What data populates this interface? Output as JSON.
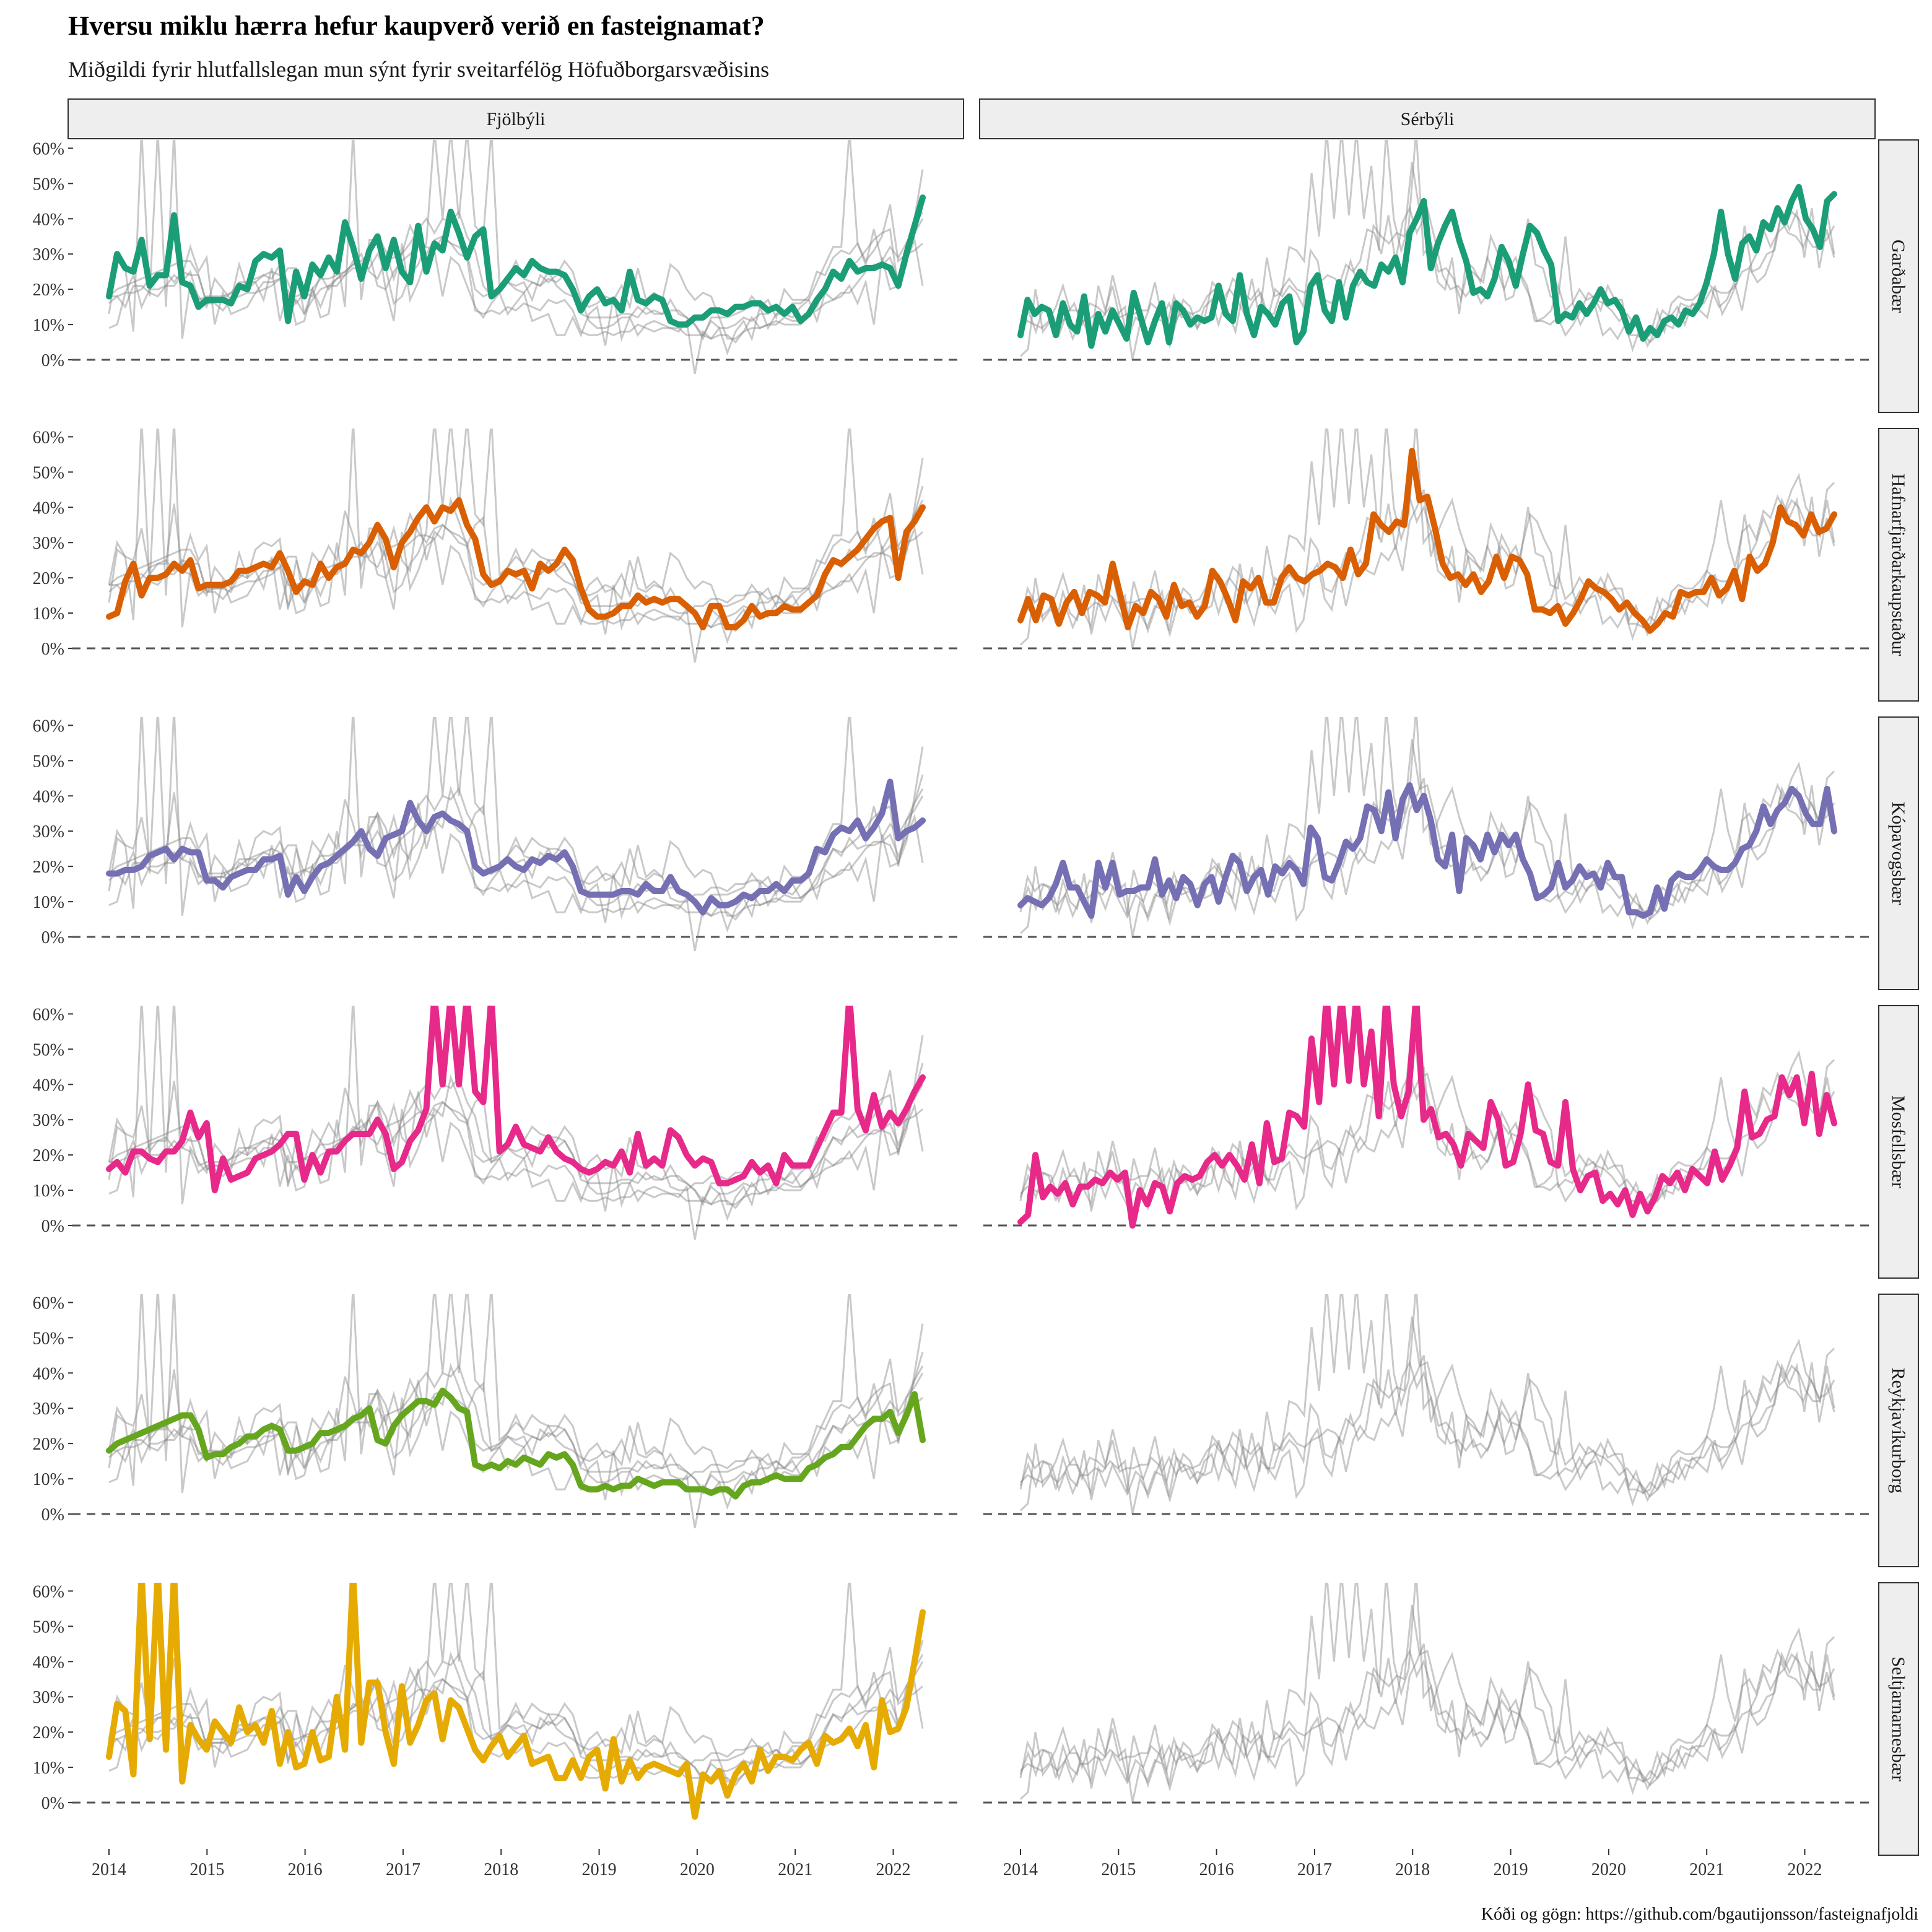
{
  "chart_data": {
    "type": "line",
    "title": "Hversu miklu hærra hefur kaupverð verið en fasteignamat?",
    "subtitle": "Miðgildi fyrir hlutfallslegan mun sýnt fyrir sveitarfélög Höfuðborgarsvæðisins",
    "caption": "Kóði og gögn: https://github.com/bgautijonsson/fasteignafjoldi",
    "xlabel": "",
    "ylabel": "",
    "x_ticks": [
      "2014",
      "2015",
      "2016",
      "2017",
      "2018",
      "2019",
      "2020",
      "2021",
      "2022"
    ],
    "xlim": [
      2014,
      2022.3
    ],
    "y_ticks": [
      "0%",
      "10%",
      "20%",
      "30%",
      "40%",
      "50%",
      "60%"
    ],
    "ylim": [
      -0.1,
      0.62
    ],
    "reference_line": 0,
    "columns": [
      "Fjölbýli",
      "Sérbýli"
    ],
    "rows": [
      "Garðabær",
      "Hafnarfjarðarkaupstaður",
      "Kópavogsbær",
      "Mosfellsbær",
      "Reykjavíkurborg",
      "Seltjarnarnesbær"
    ],
    "colors": {
      "Garðabær": "#1b9e77",
      "Hafnarfjarðarkaupstaður": "#d95f02",
      "Kópavogsbær": "#7570b3",
      "Mosfellsbær": "#e7298a",
      "Reykjavíkurborg": "#66a61e",
      "Seltjarnarnesbær": "#e6ab02",
      "background_lines": "#888888",
      "strip_fill": "#eeeeee"
    },
    "series": {
      "Fjölbýli": {
        "Garðabær": [
          0.18,
          0.3,
          0.26,
          0.25,
          0.34,
          0.21,
          0.24,
          0.24,
          0.41,
          0.22,
          0.21,
          0.15,
          0.17,
          0.17,
          0.17,
          0.16,
          0.21,
          0.2,
          0.28,
          0.3,
          0.29,
          0.31,
          0.11,
          0.25,
          0.18,
          0.27,
          0.24,
          0.29,
          0.25,
          0.39,
          0.32,
          0.23,
          0.31,
          0.35,
          0.26,
          0.34,
          0.25,
          0.22,
          0.38,
          0.25,
          0.33,
          0.31,
          0.42,
          0.36,
          0.29,
          0.35,
          0.37,
          0.18,
          0.2,
          0.23,
          0.26,
          0.24,
          0.28,
          0.26,
          0.25,
          0.25,
          0.24,
          0.2,
          0.14,
          0.18,
          0.2,
          0.16,
          0.17,
          0.14,
          0.25,
          0.17,
          0.16,
          0.18,
          0.17,
          0.11,
          0.1,
          0.1,
          0.12,
          0.12,
          0.14,
          0.14,
          0.13,
          0.15,
          0.15,
          0.16,
          0.16,
          0.14,
          0.15,
          0.13,
          0.15,
          0.11,
          0.13,
          0.17,
          0.2,
          0.25,
          0.23,
          0.28,
          0.25,
          0.26,
          0.26,
          0.27,
          0.26,
          0.21,
          0.3,
          0.38,
          0.46
        ],
        "Hafnarfjarðarkaupstaður": [
          0.09,
          0.1,
          0.19,
          0.24,
          0.15,
          0.2,
          0.2,
          0.21,
          0.24,
          0.22,
          0.25,
          0.17,
          0.18,
          0.18,
          0.18,
          0.19,
          0.22,
          0.22,
          0.23,
          0.24,
          0.23,
          0.27,
          0.22,
          0.16,
          0.19,
          0.18,
          0.24,
          0.2,
          0.23,
          0.24,
          0.28,
          0.27,
          0.3,
          0.35,
          0.31,
          0.23,
          0.3,
          0.33,
          0.37,
          0.4,
          0.36,
          0.4,
          0.39,
          0.42,
          0.35,
          0.31,
          0.21,
          0.18,
          0.19,
          0.22,
          0.21,
          0.22,
          0.17,
          0.24,
          0.22,
          0.24,
          0.28,
          0.25,
          0.17,
          0.11,
          0.09,
          0.09,
          0.1,
          0.12,
          0.12,
          0.15,
          0.13,
          0.14,
          0.13,
          0.14,
          0.14,
          0.12,
          0.1,
          0.06,
          0.12,
          0.12,
          0.06,
          0.06,
          0.08,
          0.12,
          0.09,
          0.1,
          0.1,
          0.12,
          0.11,
          0.11,
          0.13,
          0.15,
          0.21,
          0.25,
          0.24,
          0.26,
          0.28,
          0.31,
          0.34,
          0.36,
          0.37,
          0.2,
          0.33,
          0.36,
          0.4
        ],
        "Kópavogsbær": [
          0.18,
          0.18,
          0.19,
          0.19,
          0.2,
          0.23,
          0.24,
          0.25,
          0.22,
          0.25,
          0.24,
          0.24,
          0.16,
          0.16,
          0.14,
          0.17,
          0.18,
          0.19,
          0.19,
          0.22,
          0.22,
          0.23,
          0.12,
          0.17,
          0.13,
          0.17,
          0.2,
          0.21,
          0.23,
          0.25,
          0.27,
          0.3,
          0.25,
          0.23,
          0.28,
          0.29,
          0.3,
          0.38,
          0.33,
          0.3,
          0.34,
          0.35,
          0.33,
          0.32,
          0.3,
          0.2,
          0.18,
          0.19,
          0.2,
          0.22,
          0.2,
          0.19,
          0.22,
          0.21,
          0.23,
          0.22,
          0.24,
          0.2,
          0.13,
          0.12,
          0.12,
          0.12,
          0.12,
          0.13,
          0.13,
          0.12,
          0.15,
          0.13,
          0.13,
          0.17,
          0.13,
          0.12,
          0.1,
          0.07,
          0.11,
          0.09,
          0.09,
          0.1,
          0.12,
          0.11,
          0.13,
          0.13,
          0.15,
          0.13,
          0.16,
          0.16,
          0.18,
          0.25,
          0.24,
          0.29,
          0.31,
          0.3,
          0.33,
          0.28,
          0.31,
          0.35,
          0.44,
          0.28,
          0.3,
          0.31,
          0.33
        ],
        "Mosfellsbær": [
          0.16,
          0.18,
          0.15,
          0.21,
          0.21,
          0.19,
          0.18,
          0.21,
          0.21,
          0.24,
          0.32,
          0.25,
          0.29,
          0.1,
          0.19,
          0.13,
          0.14,
          0.15,
          0.19,
          0.2,
          0.21,
          0.23,
          0.26,
          0.26,
          0.13,
          0.2,
          0.15,
          0.21,
          0.21,
          0.24,
          0.26,
          0.26,
          0.26,
          0.3,
          0.26,
          0.16,
          0.18,
          0.24,
          0.27,
          0.33,
          0.65,
          0.4,
          0.65,
          0.4,
          0.65,
          0.38,
          0.35,
          0.65,
          0.21,
          0.23,
          0.28,
          0.23,
          0.22,
          0.21,
          0.25,
          0.21,
          0.19,
          0.18,
          0.16,
          0.15,
          0.16,
          0.18,
          0.17,
          0.21,
          0.15,
          0.26,
          0.17,
          0.19,
          0.17,
          0.27,
          0.25,
          0.2,
          0.17,
          0.19,
          0.18,
          0.12,
          0.12,
          0.13,
          0.14,
          0.18,
          0.15,
          0.17,
          0.12,
          0.2,
          0.17,
          0.17,
          0.17,
          0.22,
          0.27,
          0.32,
          0.32,
          0.65,
          0.33,
          0.27,
          0.37,
          0.28,
          0.32,
          0.29,
          0.33,
          0.38,
          0.42
        ],
        "Reykjavíkurborg": [
          0.18,
          0.2,
          0.21,
          0.22,
          0.23,
          0.24,
          0.25,
          0.26,
          0.27,
          0.28,
          0.28,
          0.24,
          0.16,
          0.17,
          0.17,
          0.19,
          0.2,
          0.22,
          0.22,
          0.24,
          0.25,
          0.24,
          0.18,
          0.18,
          0.19,
          0.2,
          0.23,
          0.23,
          0.24,
          0.25,
          0.27,
          0.28,
          0.3,
          0.21,
          0.2,
          0.25,
          0.28,
          0.3,
          0.32,
          0.32,
          0.31,
          0.35,
          0.33,
          0.3,
          0.29,
          0.14,
          0.13,
          0.14,
          0.13,
          0.15,
          0.14,
          0.16,
          0.15,
          0.14,
          0.17,
          0.16,
          0.17,
          0.14,
          0.08,
          0.07,
          0.07,
          0.08,
          0.07,
          0.08,
          0.08,
          0.1,
          0.09,
          0.08,
          0.09,
          0.09,
          0.09,
          0.07,
          0.07,
          0.07,
          0.06,
          0.07,
          0.07,
          0.05,
          0.08,
          0.09,
          0.09,
          0.1,
          0.11,
          0.1,
          0.1,
          0.1,
          0.13,
          0.14,
          0.16,
          0.17,
          0.19,
          0.19,
          0.22,
          0.25,
          0.27,
          0.27,
          0.29,
          0.23,
          0.28,
          0.34,
          0.21
        ],
        "Seltjarnarnesbær": [
          0.13,
          0.28,
          0.26,
          0.08,
          0.65,
          0.18,
          0.65,
          0.15,
          0.65,
          0.06,
          0.22,
          0.18,
          0.15,
          0.23,
          0.2,
          0.17,
          0.27,
          0.2,
          0.22,
          0.17,
          0.26,
          0.11,
          0.2,
          0.1,
          0.11,
          0.2,
          0.12,
          0.13,
          0.3,
          0.15,
          0.65,
          0.17,
          0.34,
          0.34,
          0.2,
          0.11,
          0.33,
          0.17,
          0.22,
          0.29,
          0.31,
          0.18,
          0.29,
          0.27,
          0.21,
          0.15,
          0.12,
          0.16,
          0.19,
          0.13,
          0.16,
          0.19,
          0.11,
          0.12,
          0.13,
          0.07,
          0.07,
          0.12,
          0.07,
          0.13,
          0.15,
          0.04,
          0.18,
          0.06,
          0.12,
          0.07,
          0.1,
          0.11,
          0.1,
          0.09,
          0.08,
          0.11,
          -0.04,
          0.08,
          0.06,
          0.09,
          0.02,
          0.08,
          0.11,
          0.06,
          0.15,
          0.09,
          0.13,
          0.13,
          0.12,
          0.15,
          0.17,
          0.11,
          0.19,
          0.17,
          0.18,
          0.21,
          0.16,
          0.22,
          0.1,
          0.29,
          0.2,
          0.21,
          0.27,
          0.4,
          0.54
        ]
      },
      "Sérbýli": {
        "Garðabær": [
          0.07,
          0.17,
          0.13,
          0.15,
          0.14,
          0.07,
          0.16,
          0.1,
          0.08,
          0.18,
          0.04,
          0.13,
          0.08,
          0.14,
          0.1,
          0.06,
          0.19,
          0.12,
          0.05,
          0.11,
          0.16,
          0.05,
          0.16,
          0.14,
          0.1,
          0.12,
          0.11,
          0.12,
          0.21,
          0.13,
          0.11,
          0.24,
          0.13,
          0.07,
          0.15,
          0.13,
          0.1,
          0.16,
          0.18,
          0.05,
          0.08,
          0.21,
          0.24,
          0.14,
          0.11,
          0.22,
          0.12,
          0.21,
          0.25,
          0.22,
          0.21,
          0.27,
          0.25,
          0.29,
          0.22,
          0.36,
          0.4,
          0.45,
          0.26,
          0.33,
          0.38,
          0.42,
          0.34,
          0.28,
          0.19,
          0.2,
          0.18,
          0.23,
          0.32,
          0.28,
          0.21,
          0.3,
          0.38,
          0.36,
          0.31,
          0.27,
          0.11,
          0.13,
          0.12,
          0.16,
          0.13,
          0.16,
          0.2,
          0.16,
          0.17,
          0.14,
          0.08,
          0.12,
          0.06,
          0.09,
          0.07,
          0.11,
          0.12,
          0.1,
          0.14,
          0.13,
          0.16,
          0.22,
          0.3,
          0.42,
          0.3,
          0.23,
          0.33,
          0.35,
          0.31,
          0.39,
          0.37,
          0.43,
          0.39,
          0.45,
          0.49,
          0.4,
          0.37,
          0.32,
          0.45,
          0.47
        ],
        "Hafnarfjarðarkaupstaður": [
          0.08,
          0.14,
          0.08,
          0.15,
          0.14,
          0.07,
          0.13,
          0.16,
          0.1,
          0.16,
          0.15,
          0.13,
          0.24,
          0.15,
          0.06,
          0.12,
          0.1,
          0.16,
          0.14,
          0.09,
          0.18,
          0.12,
          0.13,
          0.09,
          0.12,
          0.22,
          0.19,
          0.14,
          0.08,
          0.19,
          0.17,
          0.2,
          0.13,
          0.13,
          0.2,
          0.23,
          0.2,
          0.19,
          0.21,
          0.22,
          0.24,
          0.23,
          0.2,
          0.28,
          0.21,
          0.24,
          0.38,
          0.35,
          0.33,
          0.36,
          0.35,
          0.56,
          0.42,
          0.43,
          0.34,
          0.24,
          0.2,
          0.21,
          0.18,
          0.21,
          0.16,
          0.19,
          0.26,
          0.2,
          0.26,
          0.25,
          0.21,
          0.11,
          0.11,
          0.1,
          0.12,
          0.07,
          0.1,
          0.14,
          0.19,
          0.17,
          0.16,
          0.14,
          0.11,
          0.13,
          0.1,
          0.08,
          0.05,
          0.07,
          0.1,
          0.09,
          0.16,
          0.15,
          0.16,
          0.16,
          0.2,
          0.15,
          0.17,
          0.22,
          0.14,
          0.26,
          0.22,
          0.24,
          0.3,
          0.4,
          0.36,
          0.35,
          0.32,
          0.38,
          0.33,
          0.34,
          0.38
        ],
        "Kópavogsbær": [
          0.09,
          0.11,
          0.1,
          0.09,
          0.11,
          0.15,
          0.21,
          0.14,
          0.14,
          0.1,
          0.06,
          0.21,
          0.14,
          0.21,
          0.12,
          0.13,
          0.13,
          0.14,
          0.14,
          0.22,
          0.12,
          0.16,
          0.11,
          0.17,
          0.15,
          0.09,
          0.15,
          0.17,
          0.1,
          0.17,
          0.23,
          0.21,
          0.13,
          0.17,
          0.19,
          0.12,
          0.2,
          0.18,
          0.21,
          0.19,
          0.15,
          0.31,
          0.28,
          0.17,
          0.16,
          0.21,
          0.27,
          0.25,
          0.28,
          0.37,
          0.36,
          0.3,
          0.41,
          0.28,
          0.39,
          0.43,
          0.36,
          0.4,
          0.33,
          0.22,
          0.2,
          0.29,
          0.13,
          0.28,
          0.26,
          0.22,
          0.29,
          0.24,
          0.29,
          0.26,
          0.29,
          0.22,
          0.18,
          0.11,
          0.12,
          0.14,
          0.21,
          0.14,
          0.16,
          0.2,
          0.17,
          0.18,
          0.14,
          0.21,
          0.17,
          0.17,
          0.07,
          0.07,
          0.06,
          0.07,
          0.14,
          0.08,
          0.16,
          0.18,
          0.17,
          0.17,
          0.19,
          0.22,
          0.2,
          0.19,
          0.19,
          0.21,
          0.25,
          0.26,
          0.3,
          0.37,
          0.32,
          0.36,
          0.38,
          0.42,
          0.4,
          0.35,
          0.32,
          0.32,
          0.42,
          0.3
        ],
        "Mosfellsbær": [
          0.01,
          0.03,
          0.2,
          0.08,
          0.11,
          0.09,
          0.12,
          0.06,
          0.11,
          0.11,
          0.13,
          0.12,
          0.15,
          0.13,
          0.15,
          0.0,
          0.1,
          0.06,
          0.12,
          0.11,
          0.04,
          0.12,
          0.14,
          0.13,
          0.14,
          0.18,
          0.2,
          0.17,
          0.2,
          0.17,
          0.13,
          0.23,
          0.12,
          0.29,
          0.18,
          0.19,
          0.32,
          0.31,
          0.28,
          0.53,
          0.35,
          0.65,
          0.4,
          0.65,
          0.41,
          0.65,
          0.4,
          0.55,
          0.31,
          0.65,
          0.4,
          0.31,
          0.38,
          0.65,
          0.3,
          0.33,
          0.25,
          0.26,
          0.23,
          0.17,
          0.26,
          0.24,
          0.22,
          0.35,
          0.3,
          0.17,
          0.18,
          0.26,
          0.4,
          0.27,
          0.26,
          0.18,
          0.17,
          0.35,
          0.16,
          0.1,
          0.14,
          0.15,
          0.07,
          0.09,
          0.06,
          0.1,
          0.03,
          0.09,
          0.04,
          0.08,
          0.14,
          0.12,
          0.15,
          0.1,
          0.16,
          0.14,
          0.12,
          0.21,
          0.13,
          0.17,
          0.22,
          0.38,
          0.25,
          0.26,
          0.3,
          0.31,
          0.42,
          0.37,
          0.42,
          0.29,
          0.43,
          0.26,
          0.37,
          0.29
        ]
      }
    },
    "notes_on_values": "Values above the panel top (60%) are clipped; lines shown as series values are read from the plot, monthly, 2014–2022."
  }
}
